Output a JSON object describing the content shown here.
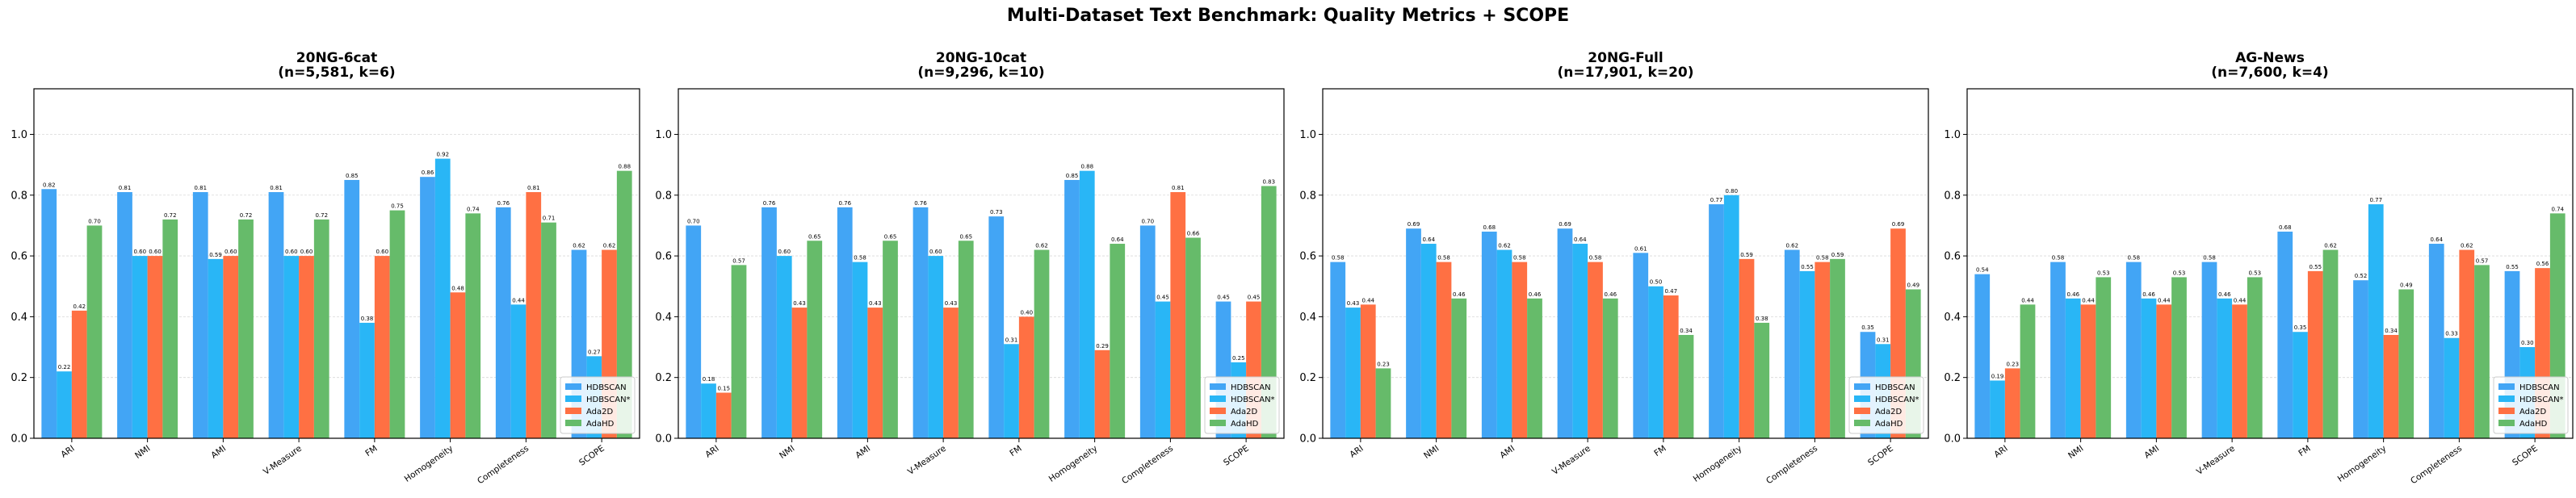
{
  "figure": {
    "title": "Multi-Dataset Text Benchmark: Quality Metrics + SCOPE"
  },
  "colors": {
    "HDBSCAN": "#42a5f5",
    "HDBSCAN*": "#29b6f6",
    "Ada2D": "#ff7043",
    "AdaHD": "#66bb6a"
  },
  "chart_data": [
    {
      "type": "bar",
      "title": [
        "20NG-6cat",
        "(n=5,581, k=6)"
      ],
      "categories": [
        "ARI",
        "NMI",
        "AMI",
        "V-Measure",
        "FM",
        "Homogeneity",
        "Completeness",
        "SCOPE"
      ],
      "ylim": [
        0,
        1.15
      ],
      "yticks": [
        "0.0",
        "0.2",
        "0.4",
        "0.6",
        "0.8",
        "1.0"
      ],
      "grid": true,
      "legend": "lower right",
      "series": [
        {
          "name": "HDBSCAN",
          "values": [
            0.82,
            0.81,
            0.81,
            0.81,
            0.85,
            0.86,
            0.76,
            0.62
          ],
          "labels": [
            "0.82",
            "0.81",
            "0.81",
            "0.81",
            "0.85",
            "0.86",
            "0.76",
            "0.62"
          ]
        },
        {
          "name": "HDBSCAN*",
          "values": [
            0.22,
            0.6,
            0.59,
            0.6,
            0.38,
            0.92,
            0.44,
            0.27
          ],
          "labels": [
            "0.22",
            "0.60",
            "0.59",
            "0.60",
            "0.38",
            "0.92",
            "0.44",
            "0.27"
          ]
        },
        {
          "name": "Ada2D",
          "values": [
            0.42,
            0.6,
            0.6,
            0.6,
            0.6,
            0.48,
            0.81,
            0.62
          ],
          "labels": [
            "0.42",
            "0.60",
            "0.60",
            "0.60",
            "0.60",
            "0.48",
            "0.81",
            "0.62"
          ]
        },
        {
          "name": "AdaHD",
          "values": [
            0.7,
            0.72,
            0.72,
            0.72,
            0.75,
            0.74,
            0.71,
            0.88
          ],
          "labels": [
            "0.70",
            "0.72",
            "0.72",
            "0.72",
            "0.75",
            "0.74",
            "0.71",
            "0.88"
          ]
        }
      ]
    },
    {
      "type": "bar",
      "title": [
        "20NG-10cat",
        "(n=9,296, k=10)"
      ],
      "categories": [
        "ARI",
        "NMI",
        "AMI",
        "V-Measure",
        "FM",
        "Homogeneity",
        "Completeness",
        "SCOPE"
      ],
      "ylim": [
        0,
        1.15
      ],
      "yticks": [
        "0.0",
        "0.2",
        "0.4",
        "0.6",
        "0.8",
        "1.0"
      ],
      "grid": true,
      "legend": "lower right",
      "series": [
        {
          "name": "HDBSCAN",
          "values": [
            0.7,
            0.76,
            0.76,
            0.76,
            0.73,
            0.85,
            0.7,
            0.45
          ],
          "labels": [
            "0.70",
            "0.76",
            "0.76",
            "0.76",
            "0.73",
            "0.85",
            "0.70",
            "0.45"
          ]
        },
        {
          "name": "HDBSCAN*",
          "values": [
            0.18,
            0.6,
            0.58,
            0.6,
            0.31,
            0.88,
            0.45,
            0.25
          ],
          "labels": [
            "0.18",
            "0.60",
            "0.58",
            "0.60",
            "0.31",
            "0.88",
            "0.45",
            "0.25"
          ]
        },
        {
          "name": "Ada2D",
          "values": [
            0.15,
            0.43,
            0.43,
            0.43,
            0.4,
            0.29,
            0.81,
            0.45
          ],
          "labels": [
            "0.15",
            "0.43",
            "0.43",
            "0.43",
            "0.40",
            "0.29",
            "0.81",
            "0.45"
          ]
        },
        {
          "name": "AdaHD",
          "values": [
            0.57,
            0.65,
            0.65,
            0.65,
            0.62,
            0.64,
            0.66,
            0.83
          ],
          "labels": [
            "0.57",
            "0.65",
            "0.65",
            "0.65",
            "0.62",
            "0.64",
            "0.66",
            "0.83"
          ]
        }
      ]
    },
    {
      "type": "bar",
      "title": [
        "20NG-Full",
        "(n=17,901, k=20)"
      ],
      "categories": [
        "ARI",
        "NMI",
        "AMI",
        "V-Measure",
        "FM",
        "Homogeneity",
        "Completeness",
        "SCOPE"
      ],
      "ylim": [
        0,
        1.15
      ],
      "yticks": [
        "0.0",
        "0.2",
        "0.4",
        "0.6",
        "0.8",
        "1.0"
      ],
      "grid": true,
      "legend": "lower right",
      "series": [
        {
          "name": "HDBSCAN",
          "values": [
            0.58,
            0.69,
            0.68,
            0.69,
            0.61,
            0.77,
            0.62,
            0.35
          ],
          "labels": [
            "0.58",
            "0.69",
            "0.68",
            "0.69",
            "0.61",
            "0.77",
            "0.62",
            "0.35"
          ]
        },
        {
          "name": "HDBSCAN*",
          "values": [
            0.43,
            0.64,
            0.62,
            0.64,
            0.5,
            0.8,
            0.55,
            0.31
          ],
          "labels": [
            "0.43",
            "0.64",
            "0.62",
            "0.64",
            "0.50",
            "0.80",
            "0.55",
            "0.31"
          ]
        },
        {
          "name": "Ada2D",
          "values": [
            0.44,
            0.58,
            0.58,
            0.58,
            0.47,
            0.59,
            0.58,
            0.69
          ],
          "labels": [
            "0.44",
            "0.58",
            "0.58",
            "0.58",
            "0.47",
            "0.59",
            "0.58",
            "0.69"
          ]
        },
        {
          "name": "AdaHD",
          "values": [
            0.23,
            0.46,
            0.46,
            0.46,
            0.34,
            0.38,
            0.59,
            0.49
          ],
          "labels": [
            "0.23",
            "0.46",
            "0.46",
            "0.46",
            "0.34",
            "0.38",
            "0.59",
            "0.49"
          ]
        }
      ]
    },
    {
      "type": "bar",
      "title": [
        "AG-News",
        "(n=7,600, k=4)"
      ],
      "categories": [
        "ARI",
        "NMI",
        "AMI",
        "V-Measure",
        "FM",
        "Homogeneity",
        "Completeness",
        "SCOPE"
      ],
      "ylim": [
        0,
        1.15
      ],
      "yticks": [
        "0.0",
        "0.2",
        "0.4",
        "0.6",
        "0.8",
        "1.0"
      ],
      "grid": true,
      "legend": "lower right",
      "series": [
        {
          "name": "HDBSCAN",
          "values": [
            0.54,
            0.58,
            0.58,
            0.58,
            0.68,
            0.52,
            0.64,
            0.55
          ],
          "labels": [
            "0.54",
            "0.58",
            "0.58",
            "0.58",
            "0.68",
            "0.52",
            "0.64",
            "0.55"
          ]
        },
        {
          "name": "HDBSCAN*",
          "values": [
            0.19,
            0.46,
            0.46,
            0.46,
            0.35,
            0.77,
            0.33,
            0.3
          ],
          "labels": [
            "0.19",
            "0.46",
            "0.46",
            "0.46",
            "0.35",
            "0.77",
            "0.33",
            "0.30"
          ]
        },
        {
          "name": "Ada2D",
          "values": [
            0.23,
            0.44,
            0.44,
            0.44,
            0.55,
            0.34,
            0.62,
            0.56
          ],
          "labels": [
            "0.23",
            "0.44",
            "0.44",
            "0.44",
            "0.55",
            "0.34",
            "0.62",
            "0.56"
          ]
        },
        {
          "name": "AdaHD",
          "values": [
            0.44,
            0.53,
            0.53,
            0.53,
            0.62,
            0.49,
            0.57,
            0.74
          ],
          "labels": [
            "0.44",
            "0.53",
            "0.53",
            "0.53",
            "0.62",
            "0.49",
            "0.57",
            "0.74"
          ]
        }
      ]
    }
  ]
}
